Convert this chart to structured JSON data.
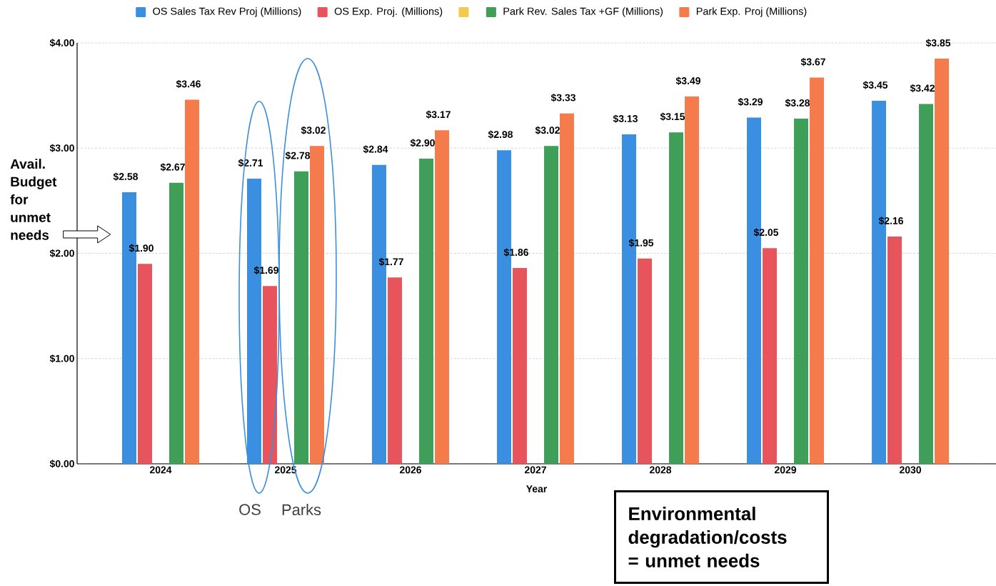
{
  "chart_data": {
    "type": "bar",
    "categories": [
      "2024",
      "2025",
      "2026",
      "2027",
      "2028",
      "2029",
      "2030"
    ],
    "xlabel": "Year",
    "series": [
      {
        "name": "OS Sales Tax Rev Proj (Millions)",
        "color": "#3b8fe0",
        "values": [
          2.58,
          2.71,
          2.84,
          2.98,
          3.13,
          3.29,
          3.45
        ],
        "value_labels": [
          "$2.58",
          "$2.71",
          "$2.84",
          "$2.98",
          "$3.13",
          "$3.29",
          "$3.45"
        ]
      },
      {
        "name": "OS Exp. Proj. (Millions)",
        "color": "#e8545c",
        "values": [
          1.9,
          1.69,
          1.77,
          1.86,
          1.95,
          2.05,
          2.16
        ],
        "value_labels": [
          "$1.90",
          "$1.69",
          "$1.77",
          "$1.86",
          "$1.95",
          "$2.05",
          "$2.16"
        ]
      },
      {
        "color": "#f5c94e",
        "values": [
          null,
          null,
          null,
          null,
          null,
          null,
          null
        ]
      },
      {
        "name": "Park Rev. Sales Tax +GF (Millions)",
        "color": "#3f9e58",
        "values": [
          2.67,
          2.78,
          2.9,
          3.02,
          3.15,
          3.28,
          3.42
        ],
        "value_labels": [
          "$2.67",
          "$2.78",
          "$2.90",
          "$3.02",
          "$3.15",
          "$3.28",
          "$3.42"
        ]
      },
      {
        "name": "Park Exp. Proj (Millions)",
        "color": "#f57a4c",
        "values": [
          3.46,
          3.02,
          3.17,
          3.33,
          3.49,
          3.67,
          3.85
        ],
        "value_labels": [
          "$3.46",
          "$3.02",
          "$3.17",
          "$3.33",
          "$3.49",
          "$3.67",
          "$3.85"
        ]
      }
    ],
    "ylim": [
      0,
      4
    ],
    "yticks": [
      {
        "value": 0,
        "label": "$0.00"
      },
      {
        "value": 1,
        "label": "$1.00"
      },
      {
        "value": 2,
        "label": "$2.00"
      },
      {
        "value": 3,
        "label": "$3.00"
      },
      {
        "value": 4,
        "label": "$4.00"
      }
    ],
    "grid": "y",
    "legend": "top",
    "annotations": [
      "Avail. Budget for unmet needs",
      "OS",
      "Parks",
      "Environmental degradation/costs = unmet needs"
    ]
  }
}
